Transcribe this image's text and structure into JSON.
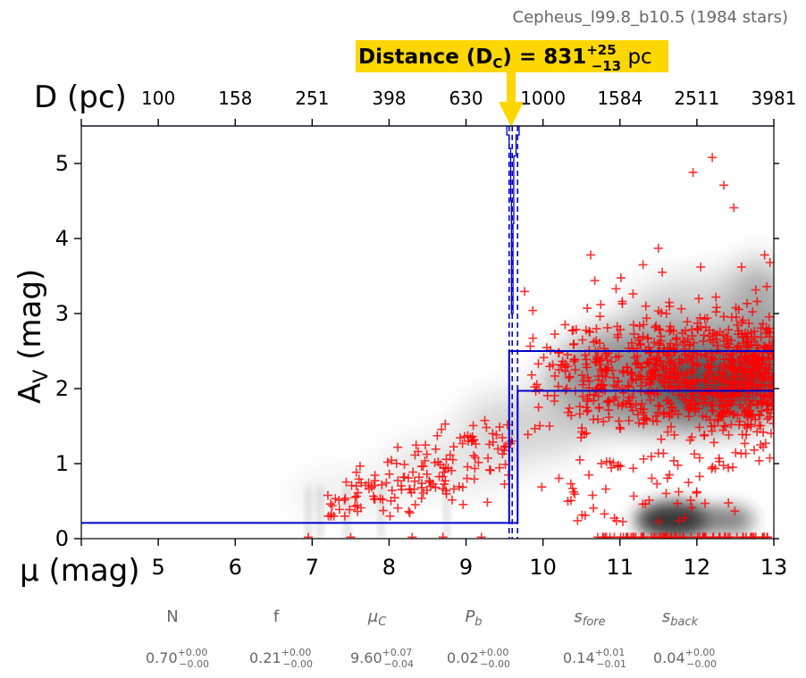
{
  "header": {
    "title": "Cepheus_l99.8_b10.5 (1984 stars)",
    "distance_label": "Distance (D",
    "distance_sub": "C",
    "distance_eq": ") = 831",
    "distance_plus": "+25",
    "distance_minus": "−13",
    "distance_unit": " pc",
    "banner_color": "#FFD700"
  },
  "chart_data": {
    "type": "scatter",
    "xlabel": "μ (mag)",
    "ylabel": "A_V (mag)",
    "ylabel_main": "A",
    "ylabel_sub": "V",
    "ylabel_tail": " (mag)",
    "top_axis_label": "D (pc)",
    "xlim": [
      4,
      13
    ],
    "ylim": [
      0,
      5.5
    ],
    "x_ticks": [
      "5",
      "6",
      "7",
      "8",
      "9",
      "10",
      "11",
      "12",
      "13"
    ],
    "y_ticks": [
      "0",
      "1",
      "2",
      "3",
      "4",
      "5"
    ],
    "top_ticks": [
      "100",
      "158",
      "251",
      "398",
      "630",
      "1000",
      "1584",
      "2511",
      "3981"
    ],
    "model": {
      "mu_c": 9.6,
      "mu_lo": 9.56,
      "mu_hi": 9.67,
      "av_fore": 0.21,
      "av_back_hi": 2.5,
      "av_back_lo": 1.97,
      "color": "#0000cc"
    },
    "stars": {
      "count": 1984,
      "marker": "+",
      "color": "#ff0000"
    },
    "hist_steps": [
      [
        9.53,
        5.5
      ],
      [
        9.53,
        5.38
      ],
      [
        9.56,
        5.38
      ],
      [
        9.56,
        5.2
      ],
      [
        9.58,
        5.2
      ],
      [
        9.58,
        4.5
      ],
      [
        9.59,
        4.5
      ],
      [
        9.59,
        3.0
      ],
      [
        9.6,
        3.0
      ],
      [
        9.6,
        3.0
      ],
      [
        9.61,
        3.0
      ],
      [
        9.61,
        4.2
      ],
      [
        9.62,
        4.2
      ],
      [
        9.62,
        5.1
      ],
      [
        9.65,
        5.1
      ],
      [
        9.65,
        5.38
      ],
      [
        9.69,
        5.38
      ],
      [
        9.69,
        5.5
      ]
    ]
  },
  "params": [
    {
      "name": "N",
      "value": "0.70",
      "plus": "+0.00",
      "minus": "−0.00"
    },
    {
      "name": "f",
      "value": "0.21",
      "plus": "+0.00",
      "minus": "−0.00"
    },
    {
      "name": "μ_C",
      "value": "9.60",
      "plus": "+0.07",
      "minus": "−0.04"
    },
    {
      "name": "P_b",
      "value": "0.02",
      "plus": "+0.00",
      "minus": "−0.00"
    },
    {
      "name": "s_fore",
      "value": "0.14",
      "plus": "+0.01",
      "minus": "−0.01"
    },
    {
      "name": "s_back",
      "value": "0.04",
      "plus": "+0.00",
      "minus": "−0.00"
    }
  ]
}
